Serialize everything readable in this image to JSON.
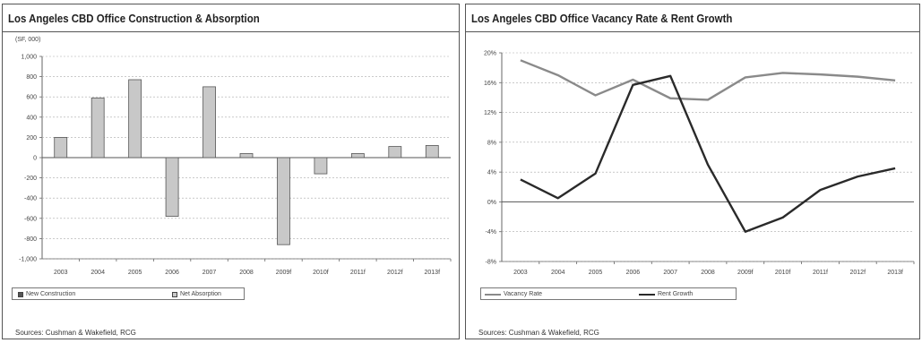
{
  "left": {
    "title": "Los Angeles CBD Office Construction & Absorption",
    "unit": "(SF, 000)",
    "source": "Sources: Cushman & Wakefield, RCG"
  },
  "right": {
    "title": "Los Angeles CBD Office Vacancy Rate & Rent Growth",
    "source": "Sources: Cushman & Wakefield, RCG"
  },
  "chart_data": [
    {
      "type": "bar",
      "title": "Los Angeles CBD Office Construction & Absorption",
      "ylabel": "(SF, 000)",
      "categories": [
        "2003",
        "2004",
        "2005",
        "2006",
        "2007",
        "2008",
        "2009f",
        "2010f",
        "2011f",
        "2012f",
        "2013f"
      ],
      "yticks": [
        "1,000",
        "800",
        "600",
        "400",
        "200",
        "0",
        "-200",
        "-400",
        "-600",
        "-800",
        "-1,000"
      ],
      "ylim": [
        -1000,
        1000
      ],
      "series": [
        {
          "name": "New Construction",
          "color": "#555555",
          "values": [
            0,
            0,
            0,
            0,
            0,
            0,
            0,
            0,
            0,
            0,
            0
          ]
        },
        {
          "name": "Net Absorption",
          "color": "#c8c8c8",
          "values": [
            200,
            590,
            770,
            -580,
            700,
            40,
            -860,
            -160,
            40,
            110,
            120
          ]
        }
      ],
      "legend": "bottom"
    },
    {
      "type": "line",
      "title": "Los Angeles CBD Office Vacancy Rate & Rent Growth",
      "categories": [
        "2003",
        "2004",
        "2005",
        "2006",
        "2007",
        "2008",
        "2009f",
        "2010f",
        "2011f",
        "2012f",
        "2013f"
      ],
      "yticks": [
        "20%",
        "16%",
        "12%",
        "8%",
        "4%",
        "0%",
        "-4%",
        "-8%"
      ],
      "ylim": [
        -8,
        20
      ],
      "series": [
        {
          "name": "Vacancy Rate",
          "color": "#8a8a8a",
          "values": [
            19,
            17,
            14.3,
            16.4,
            13.9,
            13.7,
            16.7,
            17.3,
            17.1,
            16.8,
            16.3
          ]
        },
        {
          "name": "Rent Growth",
          "color": "#2a2a2a",
          "values": [
            3,
            0.5,
            3.8,
            15.7,
            16.9,
            5,
            -4,
            -2.1,
            1.6,
            3.4,
            4.5
          ]
        }
      ],
      "legend": "bottom"
    }
  ]
}
